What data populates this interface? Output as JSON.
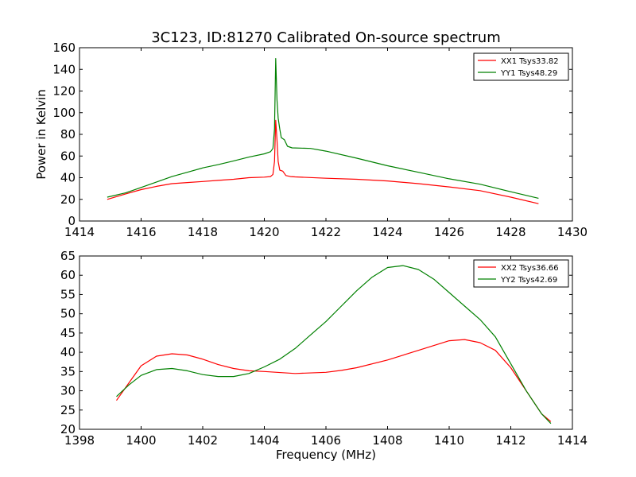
{
  "colors": {
    "series_red": "#ff0000",
    "series_green": "#008000",
    "axes": "#000000",
    "background": "#ffffff"
  },
  "chart_data": [
    {
      "type": "line",
      "title": "3C123, ID:81270 Calibrated On-source spectrum",
      "xlabel": "",
      "ylabel": "Power in Kelvin",
      "xlim": [
        1414,
        1430
      ],
      "ylim": [
        0,
        160
      ],
      "xticks": [
        1414,
        1416,
        1418,
        1420,
        1422,
        1424,
        1426,
        1428,
        1430
      ],
      "xtick_labels": [
        "1414",
        "1416",
        "1418",
        "1420",
        "1422",
        "1424",
        "1426",
        "1428",
        "1430"
      ],
      "yticks": [
        0,
        20,
        40,
        60,
        80,
        100,
        120,
        140,
        160
      ],
      "ytick_labels": [
        "0",
        "20",
        "40",
        "60",
        "80",
        "100",
        "120",
        "140",
        "160"
      ],
      "legend_position": "top-right",
      "series": [
        {
          "name": "XX1 Tsys33.82",
          "color": "#ff0000",
          "points": [
            [
              1414.9,
              20
            ],
            [
              1415.5,
              25
            ],
            [
              1416,
              29
            ],
            [
              1416.5,
              32
            ],
            [
              1417,
              34.5
            ],
            [
              1417.5,
              35.5
            ],
            [
              1418,
              36.5
            ],
            [
              1418.5,
              37.5
            ],
            [
              1419,
              38.5
            ],
            [
              1419.5,
              40
            ],
            [
              1420,
              40.5
            ],
            [
              1420.2,
              41
            ],
            [
              1420.28,
              43
            ],
            [
              1420.33,
              55
            ],
            [
              1420.37,
              93
            ],
            [
              1420.41,
              75
            ],
            [
              1420.45,
              55
            ],
            [
              1420.5,
              47
            ],
            [
              1420.6,
              46
            ],
            [
              1420.7,
              42
            ],
            [
              1420.85,
              41
            ],
            [
              1421,
              40.7
            ],
            [
              1422,
              39.5
            ],
            [
              1423,
              38.5
            ],
            [
              1424,
              37
            ],
            [
              1425,
              34.5
            ],
            [
              1426,
              31.5
            ],
            [
              1427,
              28
            ],
            [
              1428,
              22
            ],
            [
              1428.9,
              16
            ]
          ]
        },
        {
          "name": "YY1 Tsys48.29",
          "color": "#008000",
          "points": [
            [
              1414.9,
              22
            ],
            [
              1415.5,
              26
            ],
            [
              1416,
              31
            ],
            [
              1416.5,
              36
            ],
            [
              1417,
              41
            ],
            [
              1417.5,
              45
            ],
            [
              1418,
              49
            ],
            [
              1418.5,
              52
            ],
            [
              1419,
              55.5
            ],
            [
              1419.5,
              59
            ],
            [
              1420,
              62
            ],
            [
              1420.2,
              64
            ],
            [
              1420.28,
              67
            ],
            [
              1420.33,
              85
            ],
            [
              1420.37,
              150
            ],
            [
              1420.41,
              112
            ],
            [
              1420.45,
              95
            ],
            [
              1420.5,
              85
            ],
            [
              1420.55,
              77
            ],
            [
              1420.65,
              75
            ],
            [
              1420.75,
              69
            ],
            [
              1420.9,
              67.5
            ],
            [
              1421.5,
              67
            ],
            [
              1422,
              64.5
            ],
            [
              1423,
              58
            ],
            [
              1424,
              51
            ],
            [
              1425,
              45
            ],
            [
              1426,
              39
            ],
            [
              1427,
              34
            ],
            [
              1428,
              27
            ],
            [
              1428.9,
              21
            ]
          ]
        }
      ]
    },
    {
      "type": "line",
      "title": "",
      "xlabel": "Frequency (MHz)",
      "ylabel": "",
      "xlim": [
        1398,
        1414
      ],
      "ylim": [
        20,
        65
      ],
      "xticks": [
        1398,
        1400,
        1402,
        1404,
        1406,
        1408,
        1410,
        1412,
        1414
      ],
      "xtick_labels": [
        "1398",
        "1400",
        "1402",
        "1404",
        "1406",
        "1408",
        "1410",
        "1412",
        "1414"
      ],
      "yticks": [
        20,
        25,
        30,
        35,
        40,
        45,
        50,
        55,
        60,
        65
      ],
      "ytick_labels": [
        "20",
        "25",
        "30",
        "35",
        "40",
        "45",
        "50",
        "55",
        "60",
        "65"
      ],
      "legend_position": "top-right",
      "series": [
        {
          "name": "XX2 Tsys36.66",
          "color": "#ff0000",
          "points": [
            [
              1399.2,
              27.5
            ],
            [
              1399.6,
              32
            ],
            [
              1400,
              36.5
            ],
            [
              1400.5,
              39
            ],
            [
              1401,
              39.6
            ],
            [
              1401.5,
              39.3
            ],
            [
              1402,
              38.2
            ],
            [
              1402.5,
              36.8
            ],
            [
              1403,
              35.8
            ],
            [
              1403.5,
              35.2
            ],
            [
              1404,
              35
            ],
            [
              1405,
              34.5
            ],
            [
              1406,
              34.8
            ],
            [
              1406.5,
              35.3
            ],
            [
              1407,
              36
            ],
            [
              1408,
              38
            ],
            [
              1409,
              40.5
            ],
            [
              1410,
              43
            ],
            [
              1410.5,
              43.3
            ],
            [
              1411,
              42.5
            ],
            [
              1411.5,
              40.5
            ],
            [
              1412,
              36
            ],
            [
              1412.5,
              30
            ],
            [
              1413,
              24
            ],
            [
              1413.3,
              22
            ]
          ]
        },
        {
          "name": "YY2 Tsys42.69",
          "color": "#008000",
          "points": [
            [
              1399.2,
              28.5
            ],
            [
              1399.6,
              31.5
            ],
            [
              1400,
              34
            ],
            [
              1400.5,
              35.5
            ],
            [
              1401,
              35.8
            ],
            [
              1401.5,
              35.2
            ],
            [
              1402,
              34.2
            ],
            [
              1402.5,
              33.7
            ],
            [
              1403,
              33.7
            ],
            [
              1403.5,
              34.5
            ],
            [
              1404,
              36.2
            ],
            [
              1404.5,
              38.2
            ],
            [
              1405,
              41
            ],
            [
              1405.5,
              44.5
            ],
            [
              1406,
              48
            ],
            [
              1406.5,
              52
            ],
            [
              1407,
              56
            ],
            [
              1407.5,
              59.5
            ],
            [
              1408,
              62
            ],
            [
              1408.5,
              62.5
            ],
            [
              1409,
              61.5
            ],
            [
              1409.5,
              59
            ],
            [
              1410,
              55.5
            ],
            [
              1410.5,
              52
            ],
            [
              1411,
              48.5
            ],
            [
              1411.5,
              44
            ],
            [
              1412,
              37
            ],
            [
              1412.5,
              30
            ],
            [
              1413,
              24
            ],
            [
              1413.3,
              21.5
            ]
          ]
        }
      ]
    }
  ]
}
